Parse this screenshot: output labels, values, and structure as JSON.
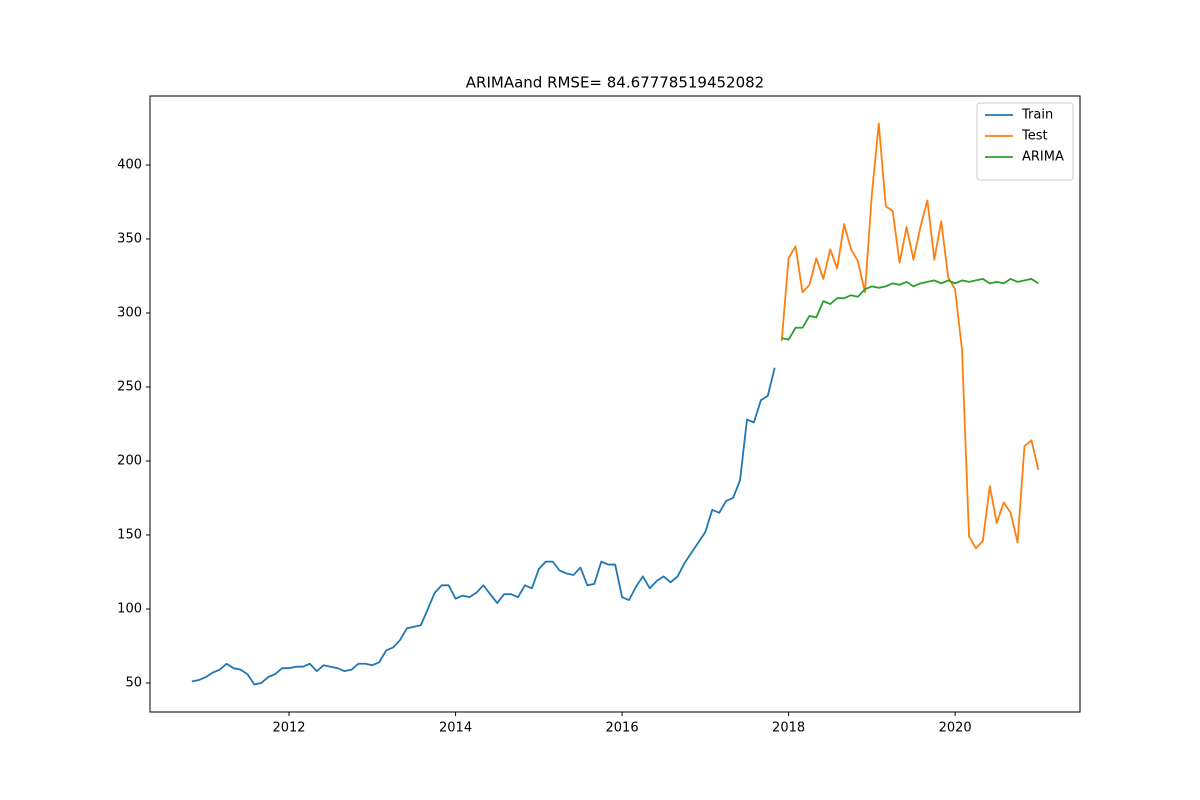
{
  "chart_data": {
    "type": "line",
    "title": "ARIMAand RMSE= 84.67778519452082",
    "xlim": [
      2010.33,
      2021.5
    ],
    "ylim": [
      30.4,
      446.6
    ],
    "xticks": [
      2012,
      2014,
      2016,
      2018,
      2020
    ],
    "yticks": [
      50,
      100,
      150,
      200,
      250,
      300,
      350,
      400
    ],
    "legend": "upper right",
    "series": [
      {
        "name": "Train",
        "color": "#1f77b4",
        "x": [
          2010.833,
          2010.917,
          2011.0,
          2011.083,
          2011.167,
          2011.25,
          2011.333,
          2011.417,
          2011.5,
          2011.583,
          2011.667,
          2011.75,
          2011.833,
          2011.917,
          2012.0,
          2012.083,
          2012.167,
          2012.25,
          2012.333,
          2012.417,
          2012.5,
          2012.583,
          2012.667,
          2012.75,
          2012.833,
          2012.917,
          2013.0,
          2013.083,
          2013.167,
          2013.25,
          2013.333,
          2013.417,
          2013.5,
          2013.583,
          2013.667,
          2013.75,
          2013.833,
          2013.917,
          2014.0,
          2014.083,
          2014.167,
          2014.25,
          2014.333,
          2014.417,
          2014.5,
          2014.583,
          2014.667,
          2014.75,
          2014.833,
          2014.917,
          2015.0,
          2015.083,
          2015.167,
          2015.25,
          2015.333,
          2015.417,
          2015.5,
          2015.583,
          2015.667,
          2015.75,
          2015.833,
          2015.917,
          2016.0,
          2016.083,
          2016.167,
          2016.25,
          2016.333,
          2016.417,
          2016.5,
          2016.583,
          2016.667,
          2016.75,
          2016.833,
          2016.917,
          2017.0,
          2017.083,
          2017.167,
          2017.25,
          2017.333,
          2017.417,
          2017.5,
          2017.583,
          2017.667,
          2017.75,
          2017.833
        ],
        "values": [
          51,
          52,
          54,
          57,
          59,
          63,
          60,
          59,
          56,
          49,
          50,
          54,
          56,
          60,
          60,
          61,
          61,
          63,
          58,
          62,
          61,
          60,
          58,
          59,
          63,
          63,
          62,
          64,
          72,
          74,
          79,
          87,
          88,
          89,
          100,
          111,
          116,
          116,
          107,
          109,
          108,
          111,
          116,
          110,
          104,
          110,
          110,
          108,
          116,
          114,
          127,
          132,
          132,
          126,
          124,
          123,
          128,
          116,
          117,
          132,
          130,
          130,
          108,
          106,
          115,
          122,
          114,
          119,
          122,
          118,
          122,
          131,
          138,
          145,
          152,
          167,
          165,
          173,
          175,
          187,
          228,
          226,
          241,
          244,
          263
        ]
      },
      {
        "name": "Test",
        "color": "#ff7f0e",
        "x": [
          2017.917,
          2018.0,
          2018.083,
          2018.167,
          2018.25,
          2018.333,
          2018.417,
          2018.5,
          2018.583,
          2018.667,
          2018.75,
          2018.833,
          2018.917,
          2019.0,
          2019.083,
          2019.167,
          2019.25,
          2019.333,
          2019.417,
          2019.5,
          2019.583,
          2019.667,
          2019.75,
          2019.833,
          2019.917,
          2020.0,
          2020.083,
          2020.167,
          2020.25,
          2020.333,
          2020.417,
          2020.5,
          2020.583,
          2020.667,
          2020.75,
          2020.833,
          2020.917,
          2021.0
        ],
        "values": [
          281,
          337,
          345,
          314,
          319,
          337,
          323,
          343,
          330,
          360,
          343,
          335,
          314,
          380,
          428,
          372,
          369,
          334,
          358,
          336,
          358,
          376,
          336,
          362,
          324,
          316,
          275,
          149,
          141,
          146,
          183,
          158,
          172,
          165,
          145,
          210,
          214,
          194
        ]
      },
      {
        "name": "ARIMA",
        "color": "#2ca02c",
        "x": [
          2017.917,
          2018.0,
          2018.083,
          2018.167,
          2018.25,
          2018.333,
          2018.417,
          2018.5,
          2018.583,
          2018.667,
          2018.75,
          2018.833,
          2018.917,
          2019.0,
          2019.083,
          2019.167,
          2019.25,
          2019.333,
          2019.417,
          2019.5,
          2019.583,
          2019.667,
          2019.75,
          2019.833,
          2019.917,
          2020.0,
          2020.083,
          2020.167,
          2020.25,
          2020.333,
          2020.417,
          2020.5,
          2020.583,
          2020.667,
          2020.75,
          2020.833,
          2020.917,
          2021.0
        ],
        "values": [
          283,
          282,
          290,
          290,
          298,
          297,
          308,
          306,
          310,
          310,
          312,
          311,
          316,
          318,
          317,
          318,
          320,
          319,
          321,
          318,
          320,
          321,
          322,
          320,
          322,
          320,
          322,
          321,
          322,
          323,
          320,
          321,
          320,
          323,
          321,
          322,
          323,
          320
        ]
      }
    ]
  }
}
